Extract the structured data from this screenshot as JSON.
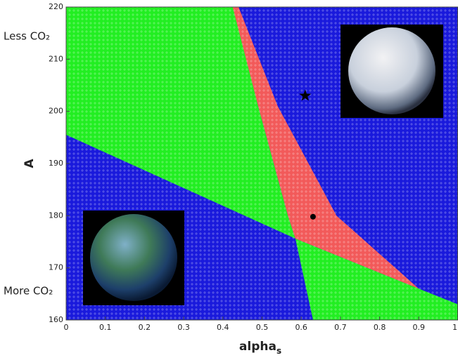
{
  "chart_data": {
    "type": "region",
    "xlabel": {
      "text": "alpha",
      "subscript": "s"
    },
    "ylabel": "A",
    "xlim": [
      0,
      1
    ],
    "ylim": [
      160,
      220
    ],
    "xticks": [
      0,
      0.1,
      0.2,
      0.3,
      0.4,
      0.5,
      0.6,
      0.7,
      0.8,
      0.9,
      1
    ],
    "yticks": [
      160,
      170,
      180,
      190,
      200,
      210,
      220
    ],
    "background": "#1a1adc",
    "regions": [
      {
        "color": "#22ee22",
        "x": [
          0,
          0.43,
          0.49,
          0.566,
          0.585,
          0
        ],
        "y": [
          220,
          220,
          201,
          180,
          175.6,
          195.5
        ]
      },
      {
        "color": "#22ee22",
        "x": [
          0.585,
          0.63,
          1,
          1,
          0.9
        ],
        "y": [
          175.6,
          160,
          160,
          163,
          166
        ]
      },
      {
        "color": "#f25a5a",
        "x": [
          0.425,
          0.44,
          0.54,
          0.69,
          0.9,
          0.585,
          0.566,
          0.49
        ],
        "y": [
          220,
          220,
          201,
          180,
          166,
          175.6,
          180,
          201
        ]
      }
    ],
    "markers": [
      {
        "x": 0.61,
        "y": 203,
        "marker": "star",
        "color": "#000000"
      },
      {
        "x": 0.63,
        "y": 179.8,
        "marker": "circle",
        "color": "#000000"
      }
    ],
    "annotations": [
      "Less CO₂",
      "More CO₂"
    ]
  }
}
